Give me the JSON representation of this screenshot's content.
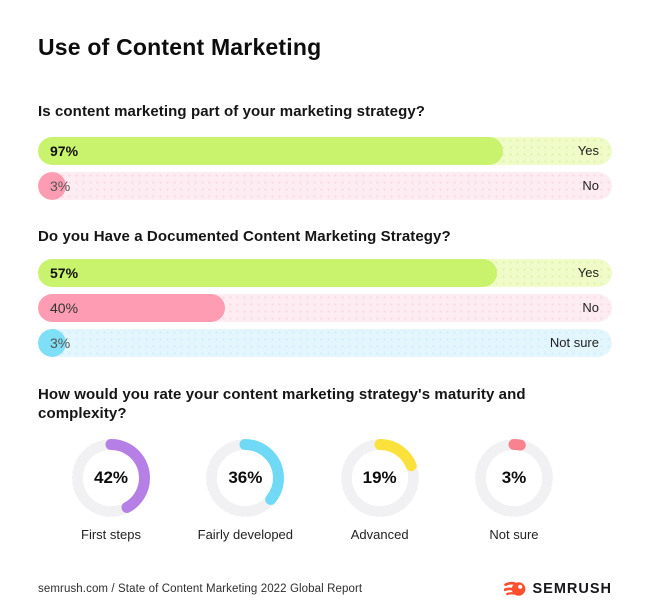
{
  "title": "Use of Content Marketing",
  "themes": {
    "green": {
      "fill": "#c9f36c",
      "track": "#effbc9",
      "dot": "#e0f3a6"
    },
    "pink": {
      "fill": "#fe9cb3",
      "track": "#fdecf1",
      "dot": "#f9d8e2"
    },
    "blue": {
      "fill": "#7fdff7",
      "track": "#e4f6fd",
      "dot": "#cdeefa"
    }
  },
  "chart_data": [
    {
      "type": "bar",
      "question": "Is content marketing part of your marketing strategy?",
      "categories": [
        "Yes",
        "No"
      ],
      "values": [
        97,
        3
      ],
      "unit": "%",
      "bars": [
        {
          "category": "Yes",
          "value": 97,
          "label": "97%",
          "theme": "green",
          "display_width_pct": 81,
          "pct_style": "strong"
        },
        {
          "category": "No",
          "value": 3,
          "label": "3%",
          "theme": "pink",
          "display_width_pct": 4.8,
          "pct_style": "muted"
        }
      ]
    },
    {
      "type": "bar",
      "question": "Do you Have a Documented Content Marketing Strategy?",
      "categories": [
        "Yes",
        "No",
        "Not sure"
      ],
      "values": [
        57,
        40,
        3
      ],
      "unit": "%",
      "bars": [
        {
          "category": "Yes",
          "value": 57,
          "label": "57%",
          "theme": "green",
          "display_width_pct": 80,
          "pct_style": "strong"
        },
        {
          "category": "No",
          "value": 40,
          "label": "40%",
          "theme": "pink",
          "display_width_pct": 32.5,
          "pct_style": "plain"
        },
        {
          "category": "Not sure",
          "value": 3,
          "label": "3%",
          "theme": "blue",
          "display_width_pct": 4.8,
          "pct_style": "muted"
        }
      ]
    },
    {
      "type": "donut",
      "question": "How would you rate your content marketing strategy's maturity and complexity?",
      "categories": [
        "First steps",
        "Fairly developed",
        "Advanced",
        "Not sure"
      ],
      "values": [
        42,
        36,
        19,
        3
      ],
      "unit": "%",
      "donuts": [
        {
          "category": "First steps",
          "value": 42,
          "label": "42%",
          "color": "#b67fe6"
        },
        {
          "category": "Fairly developed",
          "value": 36,
          "label": "36%",
          "color": "#70d9f6"
        },
        {
          "category": "Advanced",
          "value": 19,
          "label": "19%",
          "color": "#fbe13c"
        },
        {
          "category": "Not sure",
          "value": 3,
          "label": "3%",
          "color": "#f8838f"
        }
      ],
      "track_color": "#f1f1f4"
    }
  ],
  "footer": {
    "source": "semrush.com / State of Content Marketing 2022 Global Report",
    "brand": "SEMRUSH",
    "brand_color": "#ff4f2c"
  }
}
